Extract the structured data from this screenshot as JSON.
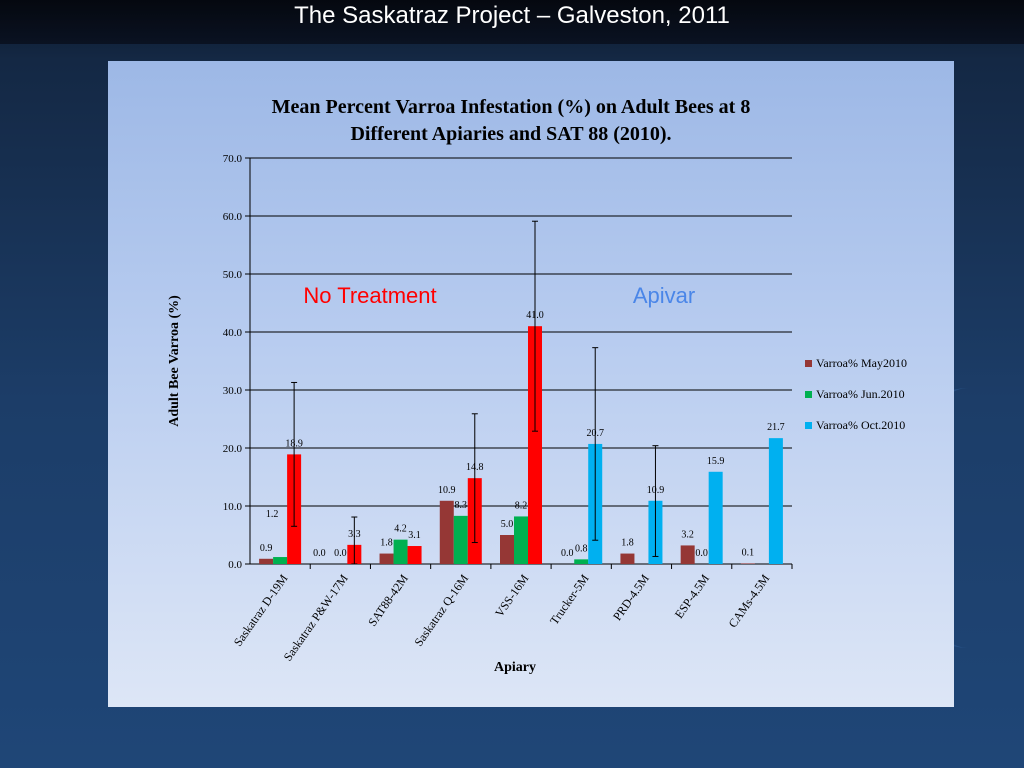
{
  "slide": {
    "title": "The Saskatraz Project – Galveston, 2011"
  },
  "colors": {
    "may": "#953735",
    "jun": "#00b050",
    "oct_no_treatment": "#ff0000",
    "oct_apivar": "#00b0f0",
    "no_treatment_label": "#ff0000",
    "apivar_label": "#4a86e8"
  },
  "chart_data": {
    "type": "bar",
    "title_line1": "Mean Percent Varroa Infestation (%) on Adult Bees at 8",
    "title_line2": "Different Apiaries and SAT 88 (2010).",
    "xlabel": "Apiary",
    "ylabel": "Adult Bee Varroa (%)",
    "ylim": [
      0,
      70
    ],
    "yticks": [
      "0.0",
      "10.0",
      "20.0",
      "30.0",
      "40.0",
      "50.0",
      "60.0",
      "70.0"
    ],
    "grid": true,
    "legend_position": "right",
    "categories": [
      "Saskatraz D-19M",
      "Saskatraz P&W-17M",
      "SAT88-42M",
      "Saskatraz Q-16M",
      "VSS-16M",
      "Trucker-5M",
      "PRD-4.5M",
      "ESP-4.5M",
      "CAMs-4.5M"
    ],
    "series": [
      {
        "name": "Varroa% May2010",
        "values": [
          0.9,
          0.0,
          1.8,
          10.9,
          5.0,
          0.0,
          1.8,
          3.2,
          0.1
        ],
        "labels": [
          "0.9",
          "0.0",
          "1.8",
          "10.9",
          "5.0",
          "0.0",
          "1.8",
          "3.2",
          "0.1"
        ]
      },
      {
        "name": "Varroa%  Jun.2010",
        "values": [
          1.2,
          0.0,
          4.2,
          8.3,
          8.2,
          0.8,
          null,
          0.0,
          null
        ],
        "labels": [
          "1.2",
          "0.0",
          "4.2",
          "8.3",
          "8.2",
          "0.8",
          "",
          "0.0",
          ""
        ]
      },
      {
        "name": "Varroa% Oct.2010",
        "values": [
          18.9,
          3.3,
          3.1,
          14.8,
          41.0,
          20.7,
          10.9,
          15.9,
          21.7
        ],
        "labels": [
          "18.9",
          "3.3",
          "3.1",
          "14.8",
          "41.0",
          "20.7",
          "10.9",
          "15.9",
          "21.7"
        ]
      }
    ],
    "error_bars_oct": [
      [
        6.5,
        31.3
      ],
      [
        0.0,
        8.1
      ],
      null,
      [
        3.7,
        25.9
      ],
      [
        22.9,
        59.1
      ],
      [
        4.1,
        37.3
      ],
      [
        1.3,
        20.4
      ],
      null,
      null
    ],
    "annotations": [
      {
        "text": "No Treatment",
        "group": "no-treatment"
      },
      {
        "text": "Apivar",
        "group": "apivar"
      }
    ]
  }
}
